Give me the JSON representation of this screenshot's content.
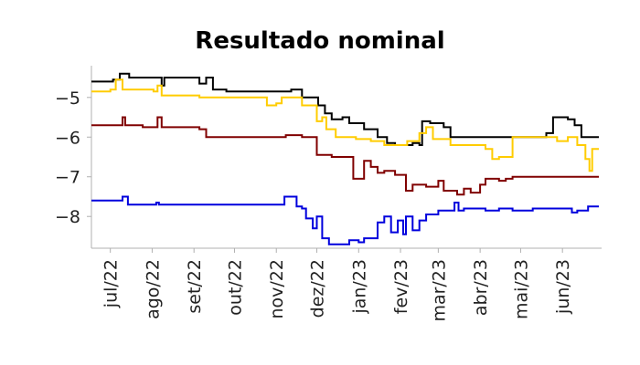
{
  "chart_data": {
    "type": "line",
    "title": "Resultado nominal",
    "xlabel": "",
    "ylabel": "",
    "ylim": [
      -8.8,
      -4.2
    ],
    "xlim": [
      "2022-06-17",
      "2023-06-30"
    ],
    "x_tick_labels": [
      "jul/22",
      "ago/22",
      "set/22",
      "out/22",
      "nov/22",
      "dez/22",
      "jan/23",
      "fev/23",
      "mar/23",
      "abr/23",
      "mai/23",
      "jun/23"
    ],
    "x_tick_dates": [
      "2022-07-01",
      "2022-08-01",
      "2022-09-01",
      "2022-10-01",
      "2022-11-01",
      "2022-12-01",
      "2023-01-01",
      "2023-02-01",
      "2023-03-01",
      "2023-04-01",
      "2023-05-01",
      "2023-06-01"
    ],
    "y_ticks": [
      -5,
      -6,
      -7,
      -8
    ],
    "y_tick_labels": [
      "−5",
      "−6",
      "−7",
      "−8"
    ],
    "grid": false,
    "series": [
      {
        "color": "#000000",
        "points": [
          [
            "2022-06-17",
            -4.6
          ],
          [
            "2022-06-26",
            -4.6
          ],
          [
            "2022-07-03",
            -4.55
          ],
          [
            "2022-07-08",
            -4.4
          ],
          [
            "2022-07-15",
            -4.5
          ],
          [
            "2022-08-05",
            -4.5
          ],
          [
            "2022-08-08",
            -4.7
          ],
          [
            "2022-08-10",
            -4.5
          ],
          [
            "2022-08-31",
            -4.5
          ],
          [
            "2022-09-05",
            -4.65
          ],
          [
            "2022-09-10",
            -4.5
          ],
          [
            "2022-09-15",
            -4.8
          ],
          [
            "2022-09-25",
            -4.85
          ],
          [
            "2022-10-28",
            -4.85
          ],
          [
            "2022-11-01",
            -4.85
          ],
          [
            "2022-11-08",
            -4.85
          ],
          [
            "2022-11-12",
            -4.8
          ],
          [
            "2022-11-20",
            -5.0
          ],
          [
            "2022-11-30",
            -5.0
          ],
          [
            "2022-12-02",
            -5.2
          ],
          [
            "2022-12-07",
            -5.4
          ],
          [
            "2022-12-12",
            -5.55
          ],
          [
            "2022-12-20",
            -5.5
          ],
          [
            "2022-12-25",
            -5.65
          ],
          [
            "2022-12-30",
            -5.65
          ],
          [
            "2023-01-05",
            -5.8
          ],
          [
            "2023-01-10",
            -5.8
          ],
          [
            "2023-01-15",
            -6.0
          ],
          [
            "2023-01-22",
            -6.15
          ],
          [
            "2023-01-28",
            -6.2
          ],
          [
            "2023-02-05",
            -6.2
          ],
          [
            "2023-02-10",
            -6.15
          ],
          [
            "2023-02-15",
            -6.2
          ],
          [
            "2023-02-17",
            -5.6
          ],
          [
            "2023-02-23",
            -5.65
          ],
          [
            "2023-03-05",
            -5.75
          ],
          [
            "2023-03-10",
            -6.0
          ],
          [
            "2023-03-25",
            -6.0
          ],
          [
            "2023-04-01",
            -6.0
          ],
          [
            "2023-04-15",
            -6.0
          ],
          [
            "2023-04-30",
            -6.0
          ],
          [
            "2023-05-15",
            -6.0
          ],
          [
            "2023-05-20",
            -5.9
          ],
          [
            "2023-05-25",
            -5.5
          ],
          [
            "2023-06-05",
            -5.55
          ],
          [
            "2023-06-10",
            -5.7
          ],
          [
            "2023-06-15",
            -6.0
          ],
          [
            "2023-06-28",
            -6.0
          ]
        ]
      },
      {
        "color": "#ffcc00",
        "points": [
          [
            "2022-06-17",
            -4.85
          ],
          [
            "2022-06-26",
            -4.85
          ],
          [
            "2022-07-01",
            -4.8
          ],
          [
            "2022-07-05",
            -4.55
          ],
          [
            "2022-07-10",
            -4.8
          ],
          [
            "2022-08-02",
            -4.85
          ],
          [
            "2022-08-05",
            -4.7
          ],
          [
            "2022-08-08",
            -4.95
          ],
          [
            "2022-08-31",
            -4.95
          ],
          [
            "2022-09-05",
            -5.0
          ],
          [
            "2022-10-20",
            -5.0
          ],
          [
            "2022-10-25",
            -5.2
          ],
          [
            "2022-11-01",
            -5.15
          ],
          [
            "2022-11-05",
            -5.0
          ],
          [
            "2022-11-10",
            -5.0
          ],
          [
            "2022-11-20",
            -5.2
          ],
          [
            "2022-11-25",
            -5.2
          ],
          [
            "2022-12-01",
            -5.6
          ],
          [
            "2022-12-05",
            -5.5
          ],
          [
            "2022-12-08",
            -5.8
          ],
          [
            "2022-12-15",
            -6.0
          ],
          [
            "2022-12-25",
            -6.0
          ],
          [
            "2022-12-30",
            -6.05
          ],
          [
            "2023-01-10",
            -6.1
          ],
          [
            "2023-01-20",
            -6.2
          ],
          [
            "2023-01-30",
            -6.2
          ],
          [
            "2023-02-06",
            -6.1
          ],
          [
            "2023-02-15",
            -5.9
          ],
          [
            "2023-02-20",
            -5.75
          ],
          [
            "2023-02-25",
            -6.05
          ],
          [
            "2023-03-10",
            -6.2
          ],
          [
            "2023-03-20",
            -6.2
          ],
          [
            "2023-03-28",
            -6.2
          ],
          [
            "2023-04-05",
            -6.3
          ],
          [
            "2023-04-10",
            -6.55
          ],
          [
            "2023-04-15",
            -6.5
          ],
          [
            "2023-04-20",
            -6.5
          ],
          [
            "2023-04-25",
            -6.0
          ],
          [
            "2023-05-01",
            -6.0
          ],
          [
            "2023-05-10",
            -6.0
          ],
          [
            "2023-05-20",
            -6.0
          ],
          [
            "2023-05-28",
            -6.1
          ],
          [
            "2023-06-05",
            -6.0
          ],
          [
            "2023-06-12",
            -6.2
          ],
          [
            "2023-06-18",
            -6.55
          ],
          [
            "2023-06-21",
            -6.85
          ],
          [
            "2023-06-23",
            -6.3
          ],
          [
            "2023-06-28",
            -6.3
          ]
        ]
      },
      {
        "color": "#800000",
        "points": [
          [
            "2022-06-17",
            -5.7
          ],
          [
            "2022-06-26",
            -5.7
          ],
          [
            "2022-07-05",
            -5.7
          ],
          [
            "2022-07-10",
            -5.5
          ],
          [
            "2022-07-12",
            -5.7
          ],
          [
            "2022-07-25",
            -5.75
          ],
          [
            "2022-08-05",
            -5.5
          ],
          [
            "2022-08-08",
            -5.75
          ],
          [
            "2022-08-25",
            -5.75
          ],
          [
            "2022-08-28",
            -5.75
          ],
          [
            "2022-09-05",
            -5.8
          ],
          [
            "2022-09-10",
            -6.0
          ],
          [
            "2022-10-30",
            -6.0
          ],
          [
            "2022-11-05",
            -6.0
          ],
          [
            "2022-11-08",
            -5.95
          ],
          [
            "2022-11-20",
            -6.0
          ],
          [
            "2022-11-30",
            -6.0
          ],
          [
            "2022-12-01",
            -6.45
          ],
          [
            "2022-12-10",
            -6.45
          ],
          [
            "2022-12-12",
            -6.5
          ],
          [
            "2022-12-25",
            -6.5
          ],
          [
            "2022-12-28",
            -7.05
          ],
          [
            "2023-01-05",
            -6.6
          ],
          [
            "2023-01-10",
            -6.75
          ],
          [
            "2023-01-15",
            -6.9
          ],
          [
            "2023-01-20",
            -6.85
          ],
          [
            "2023-01-28",
            -6.95
          ],
          [
            "2023-02-05",
            -7.35
          ],
          [
            "2023-02-10",
            -7.2
          ],
          [
            "2023-02-15",
            -7.2
          ],
          [
            "2023-02-20",
            -7.25
          ],
          [
            "2023-03-01",
            -7.1
          ],
          [
            "2023-03-05",
            -7.35
          ],
          [
            "2023-03-15",
            -7.45
          ],
          [
            "2023-03-20",
            -7.3
          ],
          [
            "2023-03-25",
            -7.4
          ],
          [
            "2023-04-01",
            -7.2
          ],
          [
            "2023-04-05",
            -7.05
          ],
          [
            "2023-04-15",
            -7.1
          ],
          [
            "2023-04-20",
            -7.05
          ],
          [
            "2023-04-25",
            -7.0
          ],
          [
            "2023-05-10",
            -7.0
          ],
          [
            "2023-05-30",
            -7.0
          ],
          [
            "2023-06-28",
            -7.0
          ]
        ]
      },
      {
        "color": "#0000dd",
        "points": [
          [
            "2022-06-17",
            -7.6
          ],
          [
            "2022-06-25",
            -7.6
          ],
          [
            "2022-07-05",
            -7.6
          ],
          [
            "2022-07-10",
            -7.5
          ],
          [
            "2022-07-14",
            -7.7
          ],
          [
            "2022-07-25",
            -7.7
          ],
          [
            "2022-08-04",
            -7.65
          ],
          [
            "2022-08-06",
            -7.7
          ],
          [
            "2022-10-30",
            -7.7
          ],
          [
            "2022-11-05",
            -7.7
          ],
          [
            "2022-11-07",
            -7.5
          ],
          [
            "2022-11-13",
            -7.5
          ],
          [
            "2022-11-16",
            -7.75
          ],
          [
            "2022-11-20",
            -7.8
          ],
          [
            "2022-11-23",
            -8.05
          ],
          [
            "2022-11-28",
            -8.3
          ],
          [
            "2022-12-01",
            -8.0
          ],
          [
            "2022-12-05",
            -8.55
          ],
          [
            "2022-12-10",
            -8.7
          ],
          [
            "2022-12-20",
            -8.7
          ],
          [
            "2022-12-25",
            -8.6
          ],
          [
            "2023-01-01",
            -8.65
          ],
          [
            "2023-01-05",
            -8.55
          ],
          [
            "2023-01-12",
            -8.55
          ],
          [
            "2023-01-15",
            -8.15
          ],
          [
            "2023-01-20",
            -8.0
          ],
          [
            "2023-01-25",
            -8.4
          ],
          [
            "2023-01-30",
            -8.1
          ],
          [
            "2023-02-03",
            -8.45
          ],
          [
            "2023-02-05",
            -8.0
          ],
          [
            "2023-02-10",
            -8.35
          ],
          [
            "2023-02-15",
            -8.1
          ],
          [
            "2023-02-20",
            -7.95
          ],
          [
            "2023-03-01",
            -7.85
          ],
          [
            "2023-03-10",
            -7.85
          ],
          [
            "2023-03-13",
            -7.65
          ],
          [
            "2023-03-16",
            -7.85
          ],
          [
            "2023-03-20",
            -7.8
          ],
          [
            "2023-03-30",
            -7.8
          ],
          [
            "2023-04-05",
            -7.85
          ],
          [
            "2023-04-15",
            -7.8
          ],
          [
            "2023-04-25",
            -7.85
          ],
          [
            "2023-05-10",
            -7.8
          ],
          [
            "2023-05-25",
            -7.8
          ],
          [
            "2023-06-02",
            -7.8
          ],
          [
            "2023-06-08",
            -7.9
          ],
          [
            "2023-06-12",
            -7.85
          ],
          [
            "2023-06-20",
            -7.75
          ],
          [
            "2023-06-28",
            -7.75
          ]
        ]
      }
    ]
  }
}
